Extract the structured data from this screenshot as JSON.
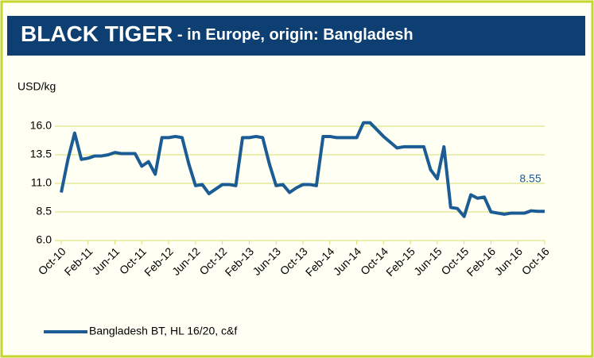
{
  "chart_data": {
    "type": "line",
    "title": "BLACK TIGER",
    "subtitle": " - in Europe, origin: Bangladesh",
    "y_axis_label": "USD/kg",
    "annotation": "8.55",
    "categories": [
      "Oct-10",
      null,
      null,
      null,
      "Feb-11",
      null,
      null,
      null,
      "Jun-11",
      null,
      null,
      null,
      "Oct-11",
      null,
      null,
      null,
      "Feb-12",
      null,
      null,
      null,
      "Jun-12",
      null,
      null,
      null,
      "Oct-12",
      null,
      null,
      null,
      "Feb-13",
      null,
      null,
      null,
      "Jun-13",
      null,
      null,
      null,
      "Oct-13",
      null,
      null,
      null,
      "Feb-14",
      null,
      null,
      null,
      "Jun-14",
      null,
      null,
      null,
      "Oct-14",
      null,
      null,
      null,
      "Feb-15",
      null,
      null,
      null,
      "Jun-15",
      null,
      null,
      null,
      "Oct-15",
      null,
      null,
      null,
      "Feb-16",
      null,
      null,
      null,
      "Jun-16",
      null,
      null,
      null,
      "Oct-16"
    ],
    "series": [
      {
        "name": "Bangladesh BT, HL 16/20, c&f",
        "color": "#1a5c93",
        "values": [
          10.2,
          13.1,
          15.4,
          13.1,
          13.2,
          13.4,
          13.4,
          13.5,
          13.7,
          13.6,
          13.6,
          13.6,
          12.5,
          12.9,
          11.8,
          15.0,
          15.0,
          15.1,
          15.0,
          12.7,
          10.8,
          10.9,
          10.1,
          10.5,
          10.9,
          10.9,
          10.8,
          15.0,
          15.0,
          15.1,
          15.0,
          12.7,
          10.8,
          10.9,
          10.2,
          10.6,
          10.9,
          10.9,
          10.8,
          15.1,
          15.1,
          15.0,
          15.0,
          15.0,
          15.0,
          16.3,
          16.3,
          15.7,
          15.1,
          14.6,
          14.1,
          14.2,
          14.2,
          14.2,
          14.2,
          12.2,
          11.4,
          14.2,
          8.9,
          8.8,
          8.1,
          10.0,
          9.7,
          9.8,
          8.5,
          8.4,
          8.3,
          8.4,
          8.4,
          8.4,
          8.6,
          8.55,
          8.55
        ]
      }
    ],
    "ylim": [
      6,
      16
    ],
    "yticks": [
      {
        "value": 6,
        "label": "6.0"
      },
      8.5,
      {
        "value": 11,
        "label": "11.0"
      },
      13.5,
      {
        "value": 16,
        "label": "16.0"
      }
    ],
    "grid": true,
    "legend": "bottom-left"
  }
}
